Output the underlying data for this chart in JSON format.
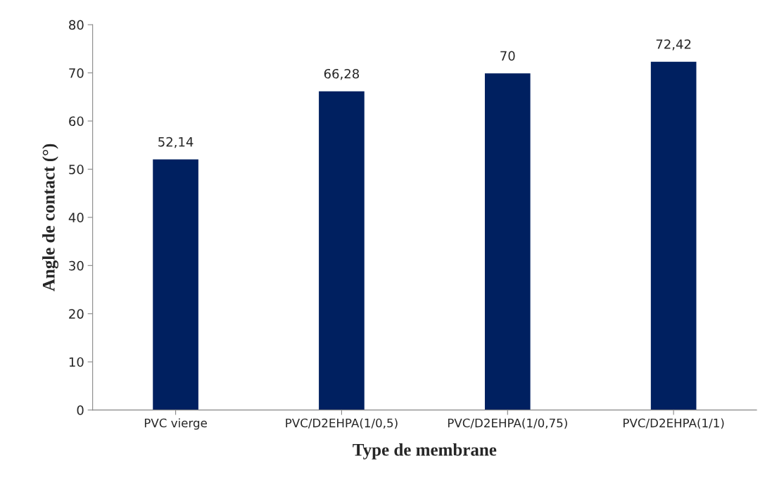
{
  "chart_data": {
    "type": "bar",
    "xlabel": "Type de membrane",
    "ylabel": "Angle de contact (°)",
    "categories": [
      "PVC vierge",
      "PVC/D2EHPA(1/0,5)",
      "PVC/D2EHPA(1/0,75)",
      "PVC/D2EHPA(1/1)"
    ],
    "values": [
      52.14,
      66.28,
      70,
      72.42
    ],
    "color": "#002060",
    "value_labels": [
      "52,14",
      "66,28",
      "70",
      "72,42"
    ],
    "ylim": [
      0,
      80
    ],
    "yticks": [
      0,
      10,
      20,
      30,
      40,
      50,
      60,
      70,
      80
    ],
    "grid": false
  }
}
